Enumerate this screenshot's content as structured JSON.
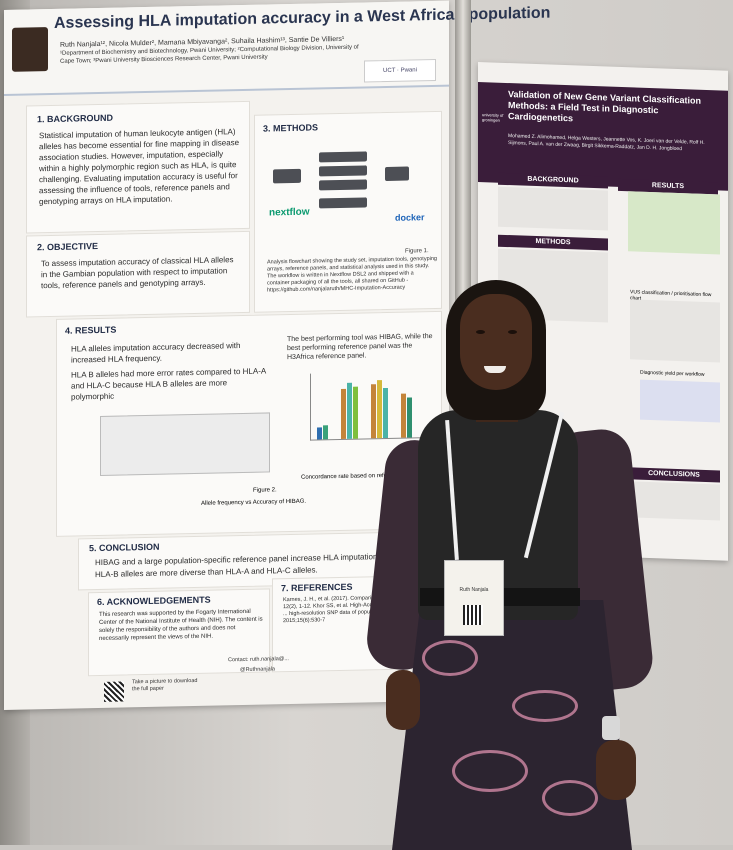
{
  "poster": {
    "title": "Assessing HLA imputation accuracy in a West African population",
    "authors": "Ruth Nanjala¹², Nicola Mulder², Mamana Mbiyavanga², Suhaila Hashim¹³, Santie De Villiers¹",
    "affiliations": "¹Department of Biochemistry and Biotechnology, Pwani University; ²Computational Biology Division, University of Cape Town; ³Pwani University Biosciences Research Center, Pwani University",
    "logos": "UCT · Pwani",
    "background": {
      "heading": "1. BACKGROUND",
      "text": "Statistical imputation of human leukocyte antigen (HLA) alleles has become essential for fine mapping in disease association studies. However, imputation, especially within a highly polymorphic region such as HLA, is quite challenging. Evaluating imputation accuracy is useful for assessing the influence of tools, reference panels and genotyping arrays on HLA imputation."
    },
    "objective": {
      "heading": "2. OBJECTIVE",
      "text": "To assess imputation accuracy of classical HLA alleles in the Gambian population with respect to imputation tools, reference panels and genotyping arrays."
    },
    "methods": {
      "heading": "3. METHODS",
      "tool_left": "nextflow",
      "tool_right": "docker",
      "figure_label": "Figure 1.",
      "caption": "Analysis flowchart showing the study set, imputation tools, genotyping arrays, reference panels, and statistical analysis used in this study. The workflow is written in Nextflow DSL2 and shipped with a container packaging of all the tools, all shared on GitHub - https://github.com/nanjalaruth/MHC-Imputation-Accuracy"
    },
    "results": {
      "heading": "4. RESULTS",
      "bullet1": "HLA alleles imputation accuracy decreased with increased HLA frequency.",
      "bullet2": "HLA B alleles had more error rates compared to HLA-A and HLA-C because HLA B alleles are more polymorphic",
      "best_tool": "The best performing tool was HIBAG, while the best performing reference panel was the H3Africa reference panel.",
      "figure2_label": "Figure 2.",
      "figure2_caption": "Allele frequency vs Accuracy of HIBAG.",
      "concordance_caption": "Concordance rate based on reference panels an..."
    },
    "conclusion": {
      "heading": "5. CONCLUSION",
      "bullet1": "HIBAG and a large population-specific reference panel increase HLA imputation accuracy in the Gam...",
      "bullet2": "HLA-B alleles are more diverse than HLA-A and HLA-C alleles."
    },
    "acknowledgements": {
      "heading": "6. ACKNOWLEDGEMENTS",
      "text": "This research was supported by the Fogarty International Center of the National Institute of Health (NIH). The content is solely the responsibility of the authors and does not necessarily represent the views of the NIH."
    },
    "references": {
      "heading": "7. REFERENCES",
      "text": "Karnes, J. H., et al. (2017). Comparison of HLA ... PLoS ONE, 12(2), 1-12. Khor SS, et al. High-Accuracy imputation for HLA ... high-resolution SNP data of population-specific ... Journal. 2015;15(6):530-7"
    },
    "footer": {
      "qr_text": "Take a picture to download the full paper",
      "contact": "Contact: ruth.nanjala@...",
      "handle": "@Ruthnanjala"
    }
  },
  "poster2": {
    "title": "Validation of New Gene Variant Classification Methods: a Field Test in Diagnostic Cardiogenetics",
    "authors": "Mohamed Z. Alimohamed, Helga Westers, Jeannette Vos, K. Joeri van der Velde, Rolf H. Sijmons, Paul A. van der Zwaag, Birgit Sikkema-Raddatz, Jan D. H. Jongbloed",
    "institution": "university of groningen",
    "sections": [
      "BACKGROUND",
      "METHODS",
      "RESULTS",
      "CONCLUSIONS"
    ],
    "flow_label": "VUS classification / prioritisation flow chart",
    "results_label": "Diagnostic yield per workflow"
  },
  "badge": {
    "text": "Ruth Nanjala"
  }
}
